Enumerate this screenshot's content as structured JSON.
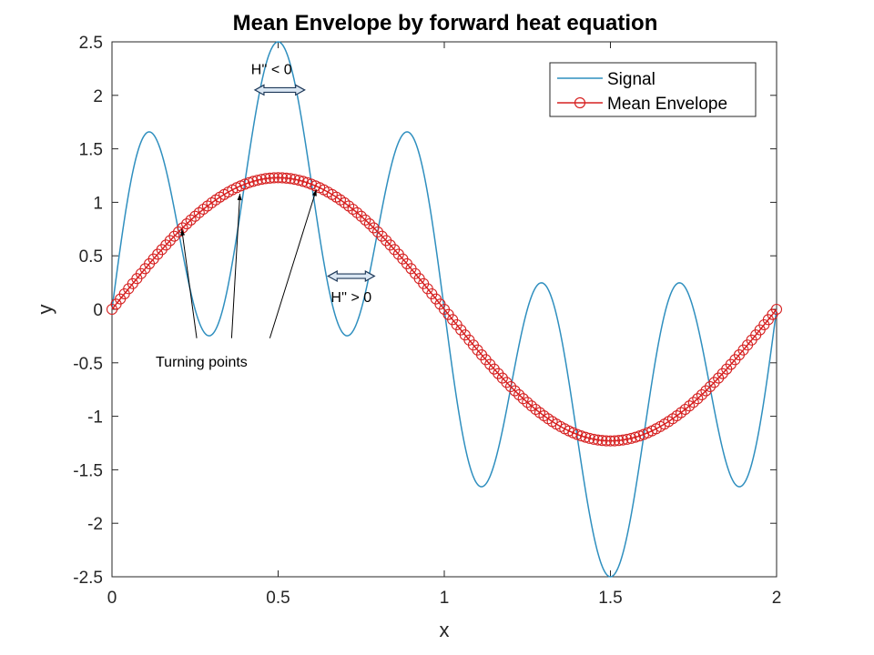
{
  "chart_data": {
    "type": "line",
    "title": "Mean Envelope by forward heat equation",
    "xlabel": "x",
    "ylabel": "y",
    "xlim": [
      0,
      2
    ],
    "ylim": [
      -2.5,
      2.5
    ],
    "x_ticks": [
      0,
      0.5,
      1,
      1.5,
      2
    ],
    "y_ticks": [
      -2.5,
      -2,
      -1.5,
      -1,
      -0.5,
      0,
      0.5,
      1,
      1.5,
      2,
      2.5
    ],
    "grid": false,
    "legend_position": "top-right",
    "series": [
      {
        "name": "Signal",
        "color": "#2f8fbf",
        "marker": "none",
        "formula": "1.25*sin(pi*x) + 1.25*sin(5*pi*x)",
        "key_points": [
          {
            "x": 0,
            "y": 0
          },
          {
            "x": 0.114,
            "y": 1.49
          },
          {
            "x": 0.29,
            "y": 0.2
          },
          {
            "x": 0.5,
            "y": 2.5
          },
          {
            "x": 0.71,
            "y": 0.2
          },
          {
            "x": 0.886,
            "y": 1.49
          },
          {
            "x": 1,
            "y": 0
          },
          {
            "x": 1.114,
            "y": -1.49
          },
          {
            "x": 1.29,
            "y": -0.2
          },
          {
            "x": 1.5,
            "y": -2.5
          },
          {
            "x": 1.71,
            "y": -0.2
          },
          {
            "x": 1.886,
            "y": -1.49
          },
          {
            "x": 2,
            "y": 0
          }
        ]
      },
      {
        "name": "Mean Envelope",
        "color": "#d62020",
        "marker": "circle",
        "formula": "1.23*sin(pi*x)",
        "samples": 161,
        "key_points": [
          {
            "x": 0,
            "y": 0
          },
          {
            "x": 0.5,
            "y": 1.23
          },
          {
            "x": 1,
            "y": 0
          },
          {
            "x": 1.5,
            "y": -1.23
          },
          {
            "x": 2,
            "y": 0
          }
        ]
      }
    ],
    "annotations": [
      {
        "text": "H'' < 0",
        "x": 0.48,
        "y": 2.2,
        "arrow": "double",
        "from_x": 0.43,
        "to_x": 0.58,
        "arrow_y": 2.05
      },
      {
        "text": "H'' > 0",
        "x": 0.72,
        "y": 0.0,
        "arrow": "double",
        "from_x": 0.65,
        "to_x": 0.79,
        "arrow_y": 0.31
      },
      {
        "text": "Turning points",
        "x": 0.36,
        "y": -0.5,
        "arrows_to": [
          {
            "x": 0.21,
            "y": 0.75,
            "from_x": 0.255,
            "from_y": -0.27
          },
          {
            "x": 0.385,
            "y": 1.08,
            "from_x": 0.36,
            "from_y": -0.27
          },
          {
            "x": 0.615,
            "y": 1.12,
            "from_x": 0.475,
            "from_y": -0.27
          }
        ]
      }
    ]
  }
}
